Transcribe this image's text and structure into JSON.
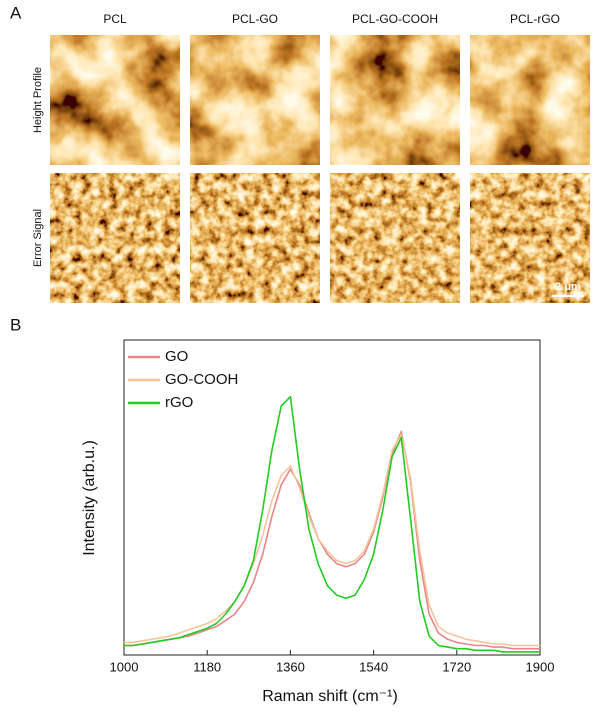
{
  "panel_a": {
    "label": "A",
    "columns": [
      "PCL",
      "PCL-GO",
      "PCL-GO-COOH",
      "PCL-rGO"
    ],
    "rows": [
      "Height Profile",
      "Error Signal"
    ],
    "scale_bar": "2 μm"
  },
  "chart_data": {
    "type": "line",
    "label": "B",
    "x_label": "Raman shift (cm⁻¹)",
    "y_label": "Intensity (arb.u.)",
    "x": [
      1000,
      1020,
      1040,
      1060,
      1080,
      1100,
      1120,
      1140,
      1160,
      1180,
      1200,
      1220,
      1240,
      1260,
      1280,
      1300,
      1320,
      1340,
      1360,
      1380,
      1400,
      1420,
      1440,
      1460,
      1480,
      1500,
      1520,
      1540,
      1560,
      1580,
      1600,
      1620,
      1640,
      1660,
      1680,
      1700,
      1720,
      1740,
      1760,
      1780,
      1800,
      1820,
      1840,
      1860,
      1880,
      1900
    ],
    "xlim": [
      1000,
      1900
    ],
    "xticks": [
      1000,
      1180,
      1360,
      1540,
      1720,
      1900
    ],
    "ylim": [
      0,
      100
    ],
    "series": [
      {
        "name": "GO",
        "color": "#e8868a",
        "values": [
          3,
          3,
          3.5,
          4,
          4.5,
          5,
          5.5,
          6,
          7,
          8,
          9,
          11,
          13,
          17,
          23,
          32,
          44,
          54,
          59,
          54,
          45,
          37,
          32,
          29,
          28,
          29,
          32,
          39,
          50,
          64,
          71,
          55,
          30,
          13,
          7,
          5,
          4,
          3.5,
          3,
          3,
          2.5,
          2.5,
          2,
          2,
          2,
          2
        ]
      },
      {
        "name": "GO-COOH",
        "color": "#f5c49a",
        "values": [
          4,
          4,
          4.5,
          5,
          5.5,
          6,
          7,
          8,
          9,
          10,
          11.5,
          14,
          17,
          22,
          29,
          38,
          49,
          57,
          60,
          53,
          44,
          37,
          33,
          30,
          29,
          30,
          33,
          40,
          51,
          65,
          70,
          56,
          33,
          16,
          9,
          7,
          6,
          5,
          4.5,
          4,
          3.5,
          3.5,
          3,
          3,
          3,
          3
        ]
      },
      {
        "name": "rGO",
        "color": "#22cc22",
        "values": [
          3,
          3,
          3.5,
          4,
          4.5,
          5,
          5.5,
          6.5,
          7.5,
          8.5,
          10,
          13,
          17,
          22,
          30,
          46,
          65,
          79,
          82,
          59,
          40,
          29,
          22,
          19,
          18,
          19,
          24,
          32,
          46,
          63,
          69,
          43,
          17,
          6,
          3,
          2.5,
          2,
          2,
          1.5,
          1.5,
          1.5,
          1,
          1,
          1,
          1,
          1
        ]
      }
    ]
  }
}
